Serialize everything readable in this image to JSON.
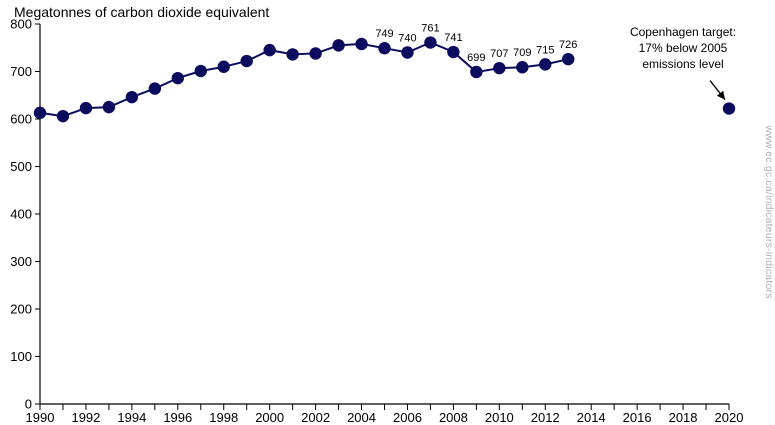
{
  "chart_data": {
    "type": "line",
    "title": "",
    "ylabel": "Megatonnes of carbon dioxide equivalent",
    "xlabel": "",
    "xlim": [
      1990,
      2020
    ],
    "ylim": [
      0,
      800
    ],
    "x_ticks": [
      "1990",
      "1992",
      "1994",
      "1996",
      "1998",
      "2000",
      "2002",
      "2004",
      "2006",
      "2008",
      "2010",
      "2012",
      "2014",
      "2016",
      "2018",
      "2020"
    ],
    "y_ticks": [
      "0",
      "100",
      "200",
      "300",
      "400",
      "500",
      "600",
      "700",
      "800"
    ],
    "grid": false,
    "series": [
      {
        "x": [
          1990,
          1991,
          1992,
          1993,
          1994,
          1995,
          1996,
          1997,
          1998,
          1999,
          2000,
          2001,
          2002,
          2003,
          2004,
          2005,
          2006,
          2007,
          2008,
          2009,
          2010,
          2011,
          2012,
          2013
        ],
        "values": [
          613,
          606,
          623,
          625,
          646,
          664,
          686,
          701,
          710,
          722,
          745,
          736,
          738,
          755,
          758,
          749,
          740,
          761,
          741,
          699,
          707,
          709,
          715,
          726
        ],
        "data_labels": [
          "",
          "",
          "",
          "",
          "",
          "",
          "",
          "",
          "",
          "",
          "",
          "",
          "",
          "",
          "",
          "749",
          "740",
          "761",
          "741",
          "699",
          "707",
          "709",
          "715",
          "726"
        ]
      }
    ],
    "target_point": {
      "x": 2020,
      "y": 622
    },
    "annotations": [
      {
        "lines": [
          "Copenhagen target:",
          "17% below 2005",
          "emissions level"
        ],
        "target_x": 2020
      }
    ],
    "colors": {
      "series": "#0c0c5e",
      "axis": "#000000"
    }
  },
  "source_url": "www.ec.gc.ca/indicateurs-indicators"
}
